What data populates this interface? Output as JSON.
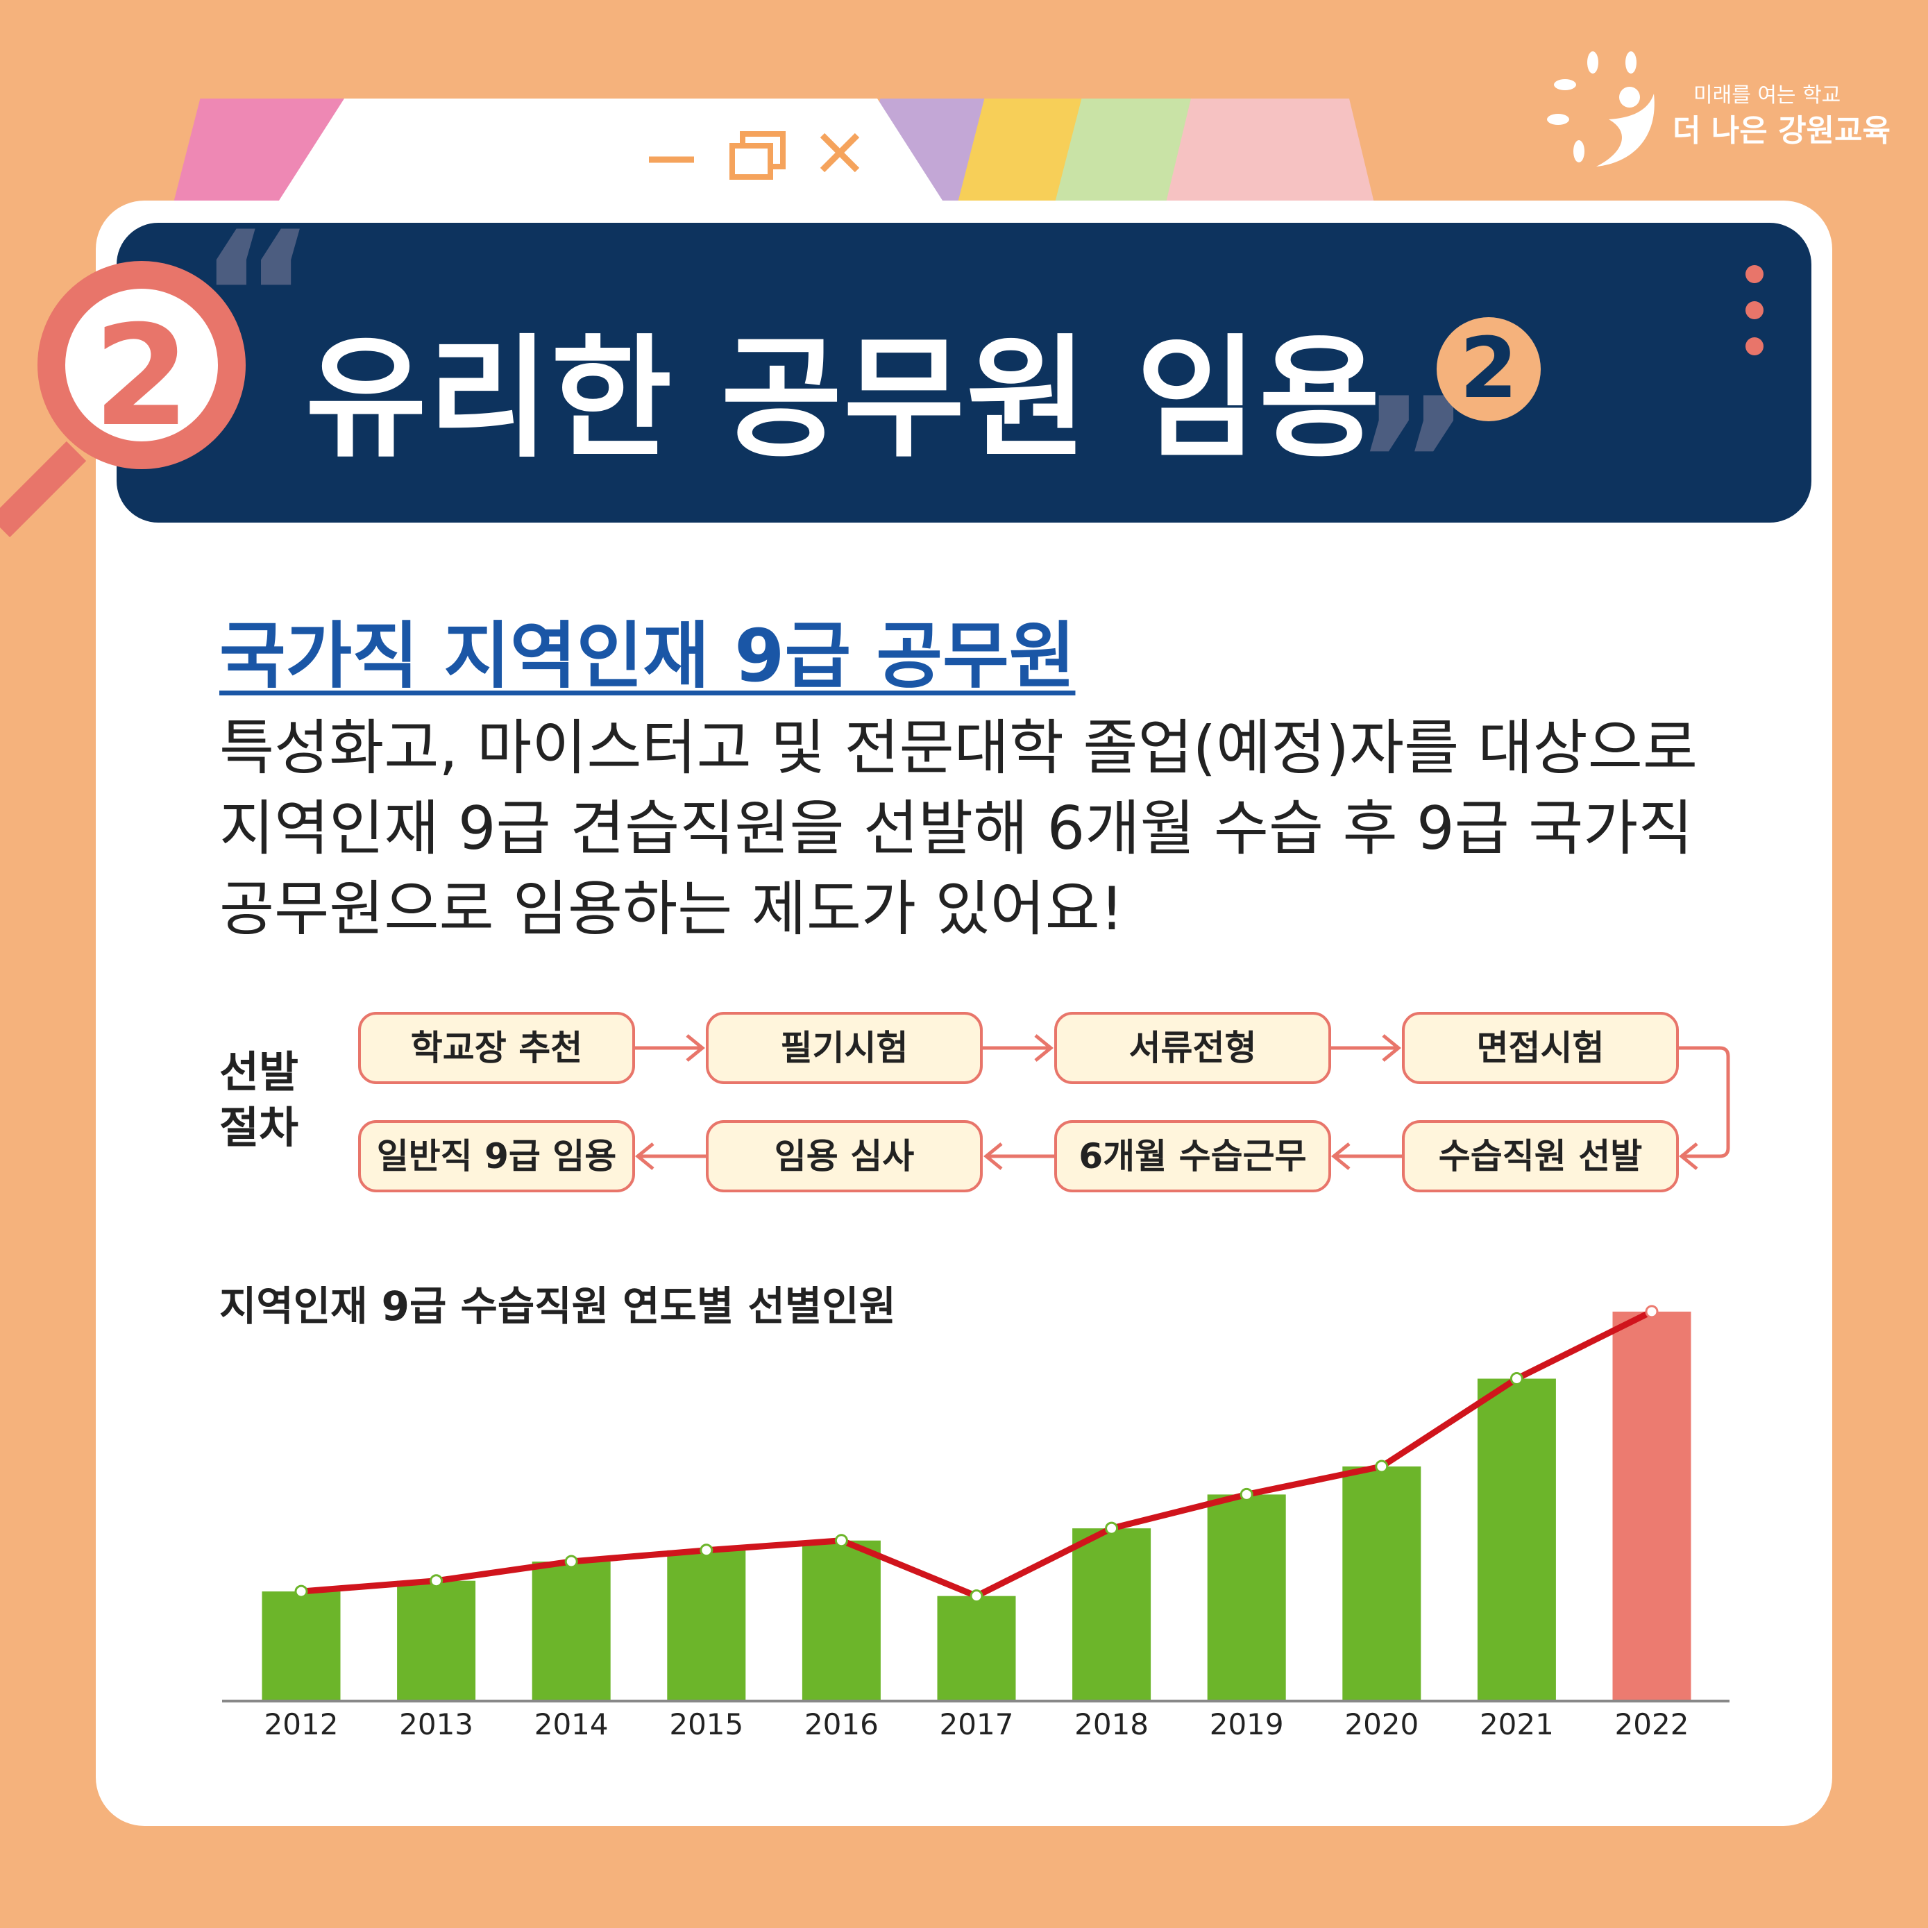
{
  "brand": {
    "tagline": "미래를 여는 학교",
    "name": "더 나은 강원교육"
  },
  "window_controls": [
    "minimize-icon",
    "restore-icon",
    "close-icon"
  ],
  "header": {
    "badge_number": "2",
    "title": "유리한 공무원 임용",
    "part_number": "2"
  },
  "section": {
    "subtitle": "국가직 지역인재 9급 공무원",
    "paragraph": "특성화고, 마이스터고 및 전문대학 졸업(예정)자를 대상으로 지역인재 9급 견습직원을 선발해 6개월 수습 후 9급 국가직 공무원으로 임용하는 제도가 있어요!"
  },
  "flow": {
    "label_line1": "선발",
    "label_line2": "절차",
    "row1": [
      "학교장 추천",
      "필기시험",
      "서류전형",
      "면접시험"
    ],
    "row2": [
      "일반직 9급 임용",
      "임용 심사",
      "6개월 수습근무",
      "수습직원 선발"
    ]
  },
  "colors": {
    "bg": "#f5b27c",
    "navy": "#0d335e",
    "accent": "#e8756a",
    "bar": "#6cb52a",
    "highlight_bar": "#ec7b70",
    "line": "#d0141c",
    "subtitle": "#1a56a6"
  },
  "chart_data": {
    "type": "bar",
    "title": "지역인재 9급 수습직원 연도별 선별인원",
    "categories": [
      "2012",
      "2013",
      "2014",
      "2015",
      "2016",
      "2017",
      "2018",
      "2019",
      "2020",
      "2021",
      "2022"
    ],
    "values": [
      355,
      390,
      453,
      490,
      522,
      340,
      562,
      673,
      765,
      1053,
      1273
    ],
    "overlay": "line",
    "highlight": "2022",
    "grid": false,
    "ylim": [
      0,
      1300
    ]
  }
}
